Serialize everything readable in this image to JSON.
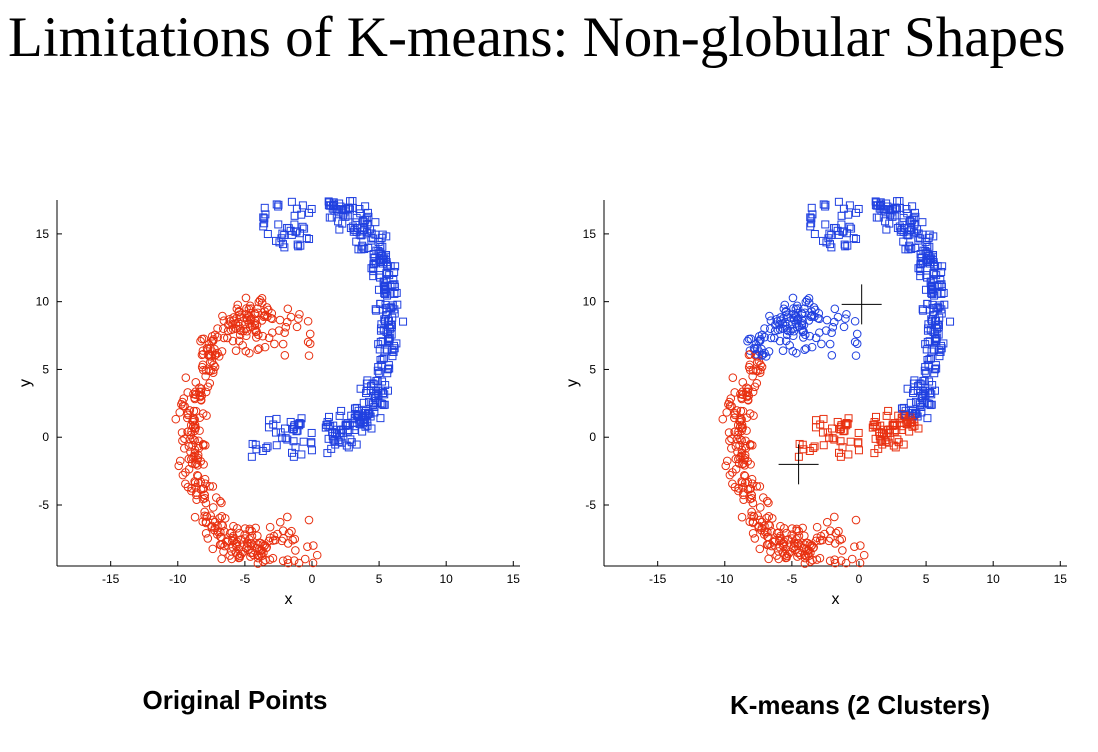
{
  "slide": {
    "title": "Limitations of K-means: Non-globular Shapes"
  },
  "colors": {
    "cluster_a": "#2040e0",
    "cluster_b": "#e83010",
    "axis": "#000000"
  },
  "chart_data": [
    {
      "type": "scatter",
      "caption": "Original Points",
      "xlabel": "x",
      "ylabel": "y",
      "xlim": [
        -19,
        15.5
      ],
      "ylim": [
        -9.5,
        17.5
      ],
      "xticks": [
        -15,
        -10,
        -5,
        0,
        5,
        10,
        15
      ],
      "yticks": [
        -5,
        0,
        5,
        10,
        15
      ],
      "grid": false,
      "series": [
        {
          "marker": "square",
          "color": "#2040e0",
          "shape": "upper spiral arm: arc from (-4,17) around right side to (-4,0)"
        },
        {
          "marker": "circle",
          "color": "#e83010",
          "shape": "lower spiral arm: arc from (0,9) around left side to (0,-9)"
        }
      ],
      "centroids": []
    },
    {
      "type": "scatter",
      "caption": "K-means (2 Clusters)",
      "xlabel": "x",
      "ylabel": "y",
      "xlim": [
        -19,
        15.5
      ],
      "ylim": [
        -9.5,
        17.5
      ],
      "xticks": [
        -15,
        -10,
        -5,
        0,
        5,
        10,
        15
      ],
      "yticks": [
        -5,
        0,
        5,
        10,
        15
      ],
      "grid": false,
      "series": [
        {
          "marker": "square",
          "color": "#2040e0",
          "cluster": "upper-right"
        },
        {
          "marker": "circle",
          "color": "#e83010",
          "cluster": "lower-left"
        }
      ],
      "centroids": [
        {
          "x": 0.2,
          "y": 9.8
        },
        {
          "x": -4.5,
          "y": -2.0
        }
      ]
    }
  ]
}
